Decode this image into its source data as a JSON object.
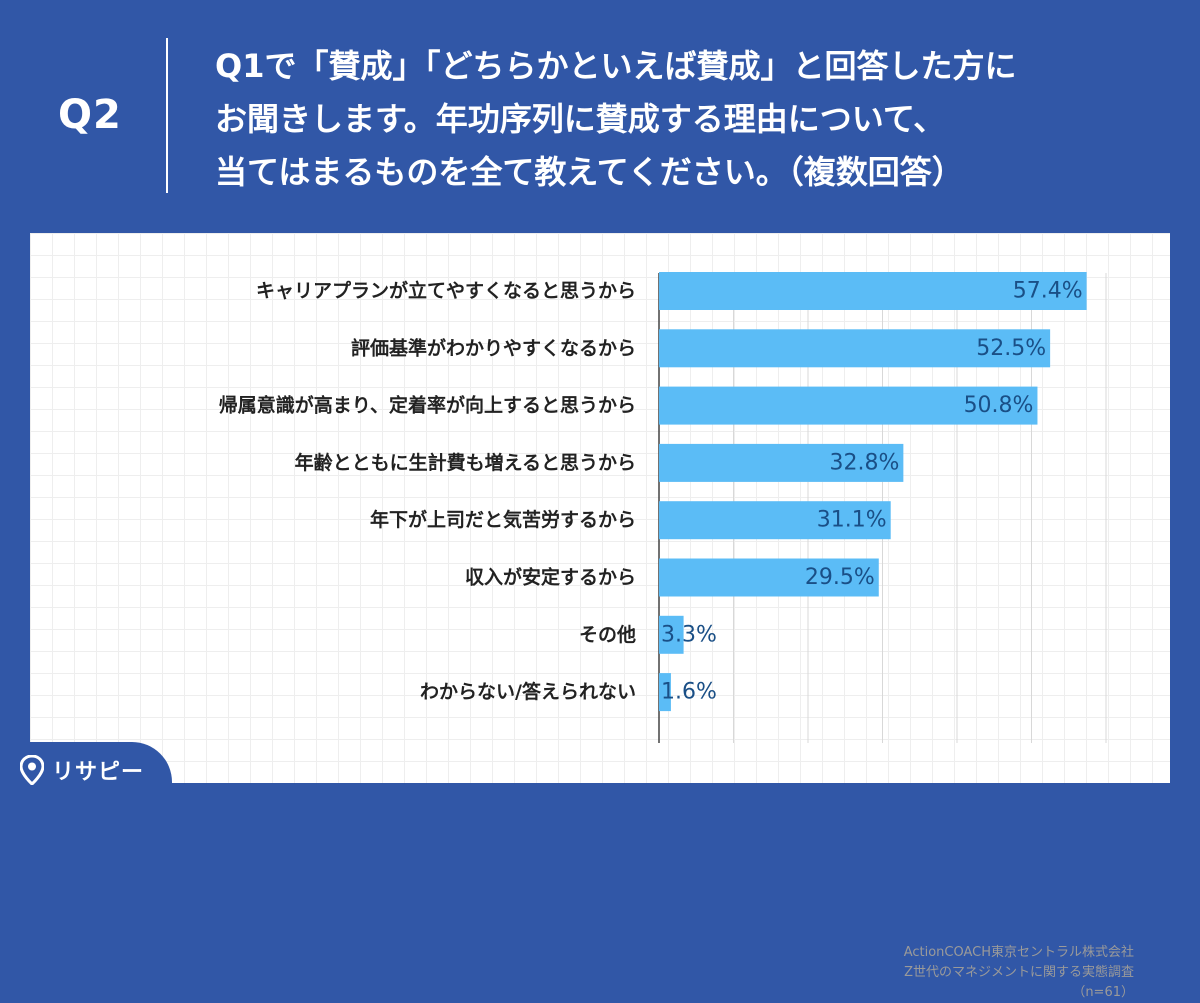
{
  "header": {
    "question_number": "Q2",
    "question_lines": [
      "Q1で「賛成」「どちらかといえば賛成」と回答した方に",
      "お聞きします。年功序列に賛成する理由について、",
      "当てはまるものを全て教えてください。（複数回答）"
    ]
  },
  "colors": {
    "background": "#3157a7",
    "bar": "#5bbcf6",
    "value_label": "#1a4f86",
    "category_label": "#222222"
  },
  "chart_data": {
    "type": "bar",
    "orientation": "horizontal",
    "categories": [
      "キャリアプランが立てやすくなると思うから",
      "評価基準がわかりやすくなるから",
      "帰属意識が高まり、定着率が向上すると思うから",
      "年齢とともに生計費も増えると思うから",
      "年下が上司だと気苦労するから",
      "収入が安定するから",
      "その他",
      "わからない/答えられない"
    ],
    "values": [
      57.4,
      52.5,
      50.8,
      32.8,
      31.1,
      29.5,
      3.3,
      1.6
    ],
    "value_labels": [
      "57.4%",
      "52.5%",
      "50.8%",
      "32.8%",
      "31.1%",
      "29.5%",
      "3.3%",
      "1.6%"
    ],
    "xlim": [
      0,
      60
    ],
    "grid": true
  },
  "source": {
    "line1": "ActionCOACH東京セントラル株式会社",
    "line2": "Z世代のマネジメントに関する実態調査",
    "line3": "（n=61）"
  },
  "logo": {
    "text": "リサピー",
    "icon": "location-pin-icon"
  }
}
